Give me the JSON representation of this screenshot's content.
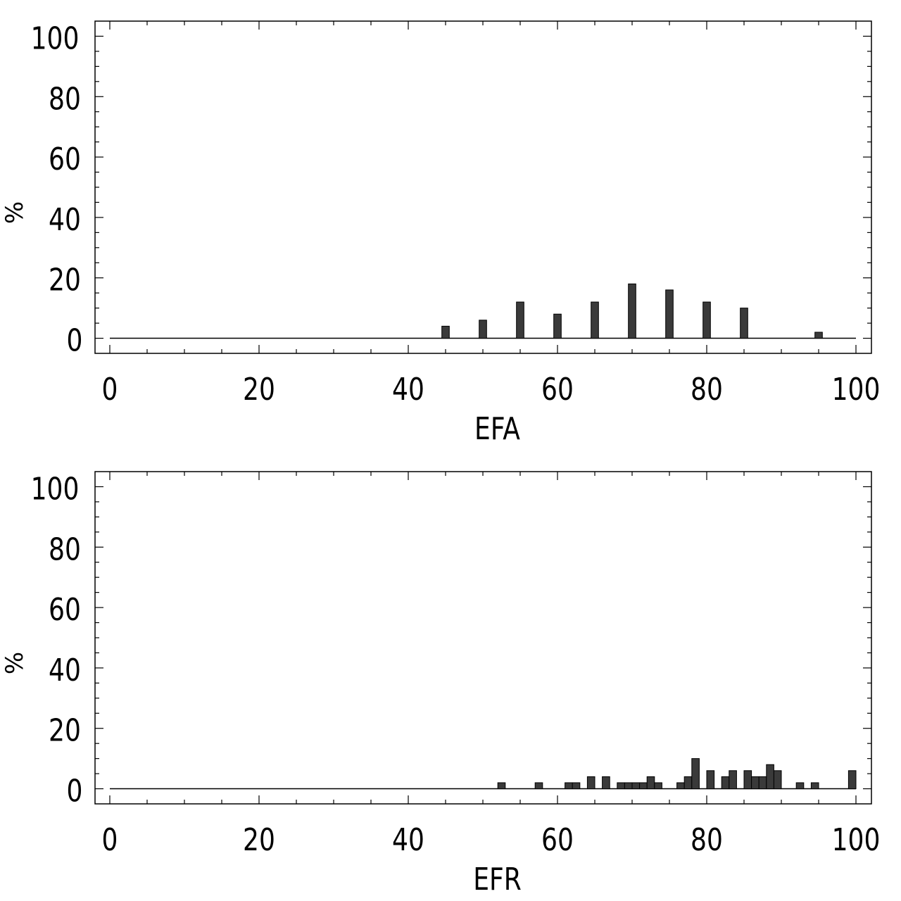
{
  "chart_data": [
    {
      "type": "bar",
      "xlabel": "EFA",
      "ylabel": "%",
      "xlim": [
        0,
        100
      ],
      "ylim": [
        -5,
        105
      ],
      "xticks": [
        "0",
        "20",
        "40",
        "60",
        "80",
        "100"
      ],
      "yticks": [
        "0",
        "20",
        "40",
        "60",
        "80",
        "100"
      ],
      "bar_width": 1,
      "x": [
        45,
        50,
        55,
        60,
        65,
        70,
        75,
        80,
        85,
        95
      ],
      "values": [
        4,
        6,
        12,
        8,
        12,
        18,
        16,
        12,
        10,
        2
      ],
      "color": "#3a3a3a"
    },
    {
      "type": "bar",
      "xlabel": "EFR",
      "ylabel": "%",
      "xlim": [
        0,
        100
      ],
      "ylim": [
        -5,
        105
      ],
      "xticks": [
        "0",
        "20",
        "40",
        "60",
        "80",
        "100"
      ],
      "yticks": [
        "0",
        "20",
        "40",
        "60",
        "80",
        "100"
      ],
      "bar_width": 1,
      "x": [
        52.5,
        57.5,
        61.5,
        62.5,
        64.5,
        66.5,
        68.5,
        69.5,
        70.5,
        71.5,
        72.5,
        73.5,
        76.5,
        77.5,
        78.5,
        80.5,
        82.5,
        83.5,
        85.5,
        86.5,
        87.5,
        88.5,
        89.5,
        92.5,
        94.5,
        99.5
      ],
      "values": [
        2,
        2,
        2,
        2,
        4,
        4,
        2,
        2,
        2,
        2,
        4,
        2,
        2,
        4,
        10,
        6,
        4,
        6,
        6,
        4,
        4,
        8,
        6,
        2,
        2,
        6
      ],
      "color": "#3a3a3a"
    }
  ]
}
